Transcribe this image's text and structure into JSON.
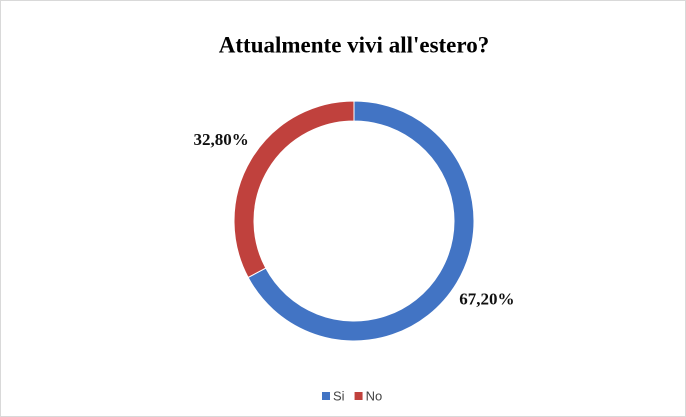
{
  "chart_data": {
    "type": "pie",
    "donut": true,
    "title": "Attualmente vivi all'estero?",
    "categories": [
      "Si",
      "No"
    ],
    "values": [
      67.2,
      32.8
    ],
    "value_labels": [
      "67,20%",
      "32,80%"
    ],
    "colors": [
      "#4274c4",
      "#c0413d"
    ],
    "legend": "bottom"
  }
}
